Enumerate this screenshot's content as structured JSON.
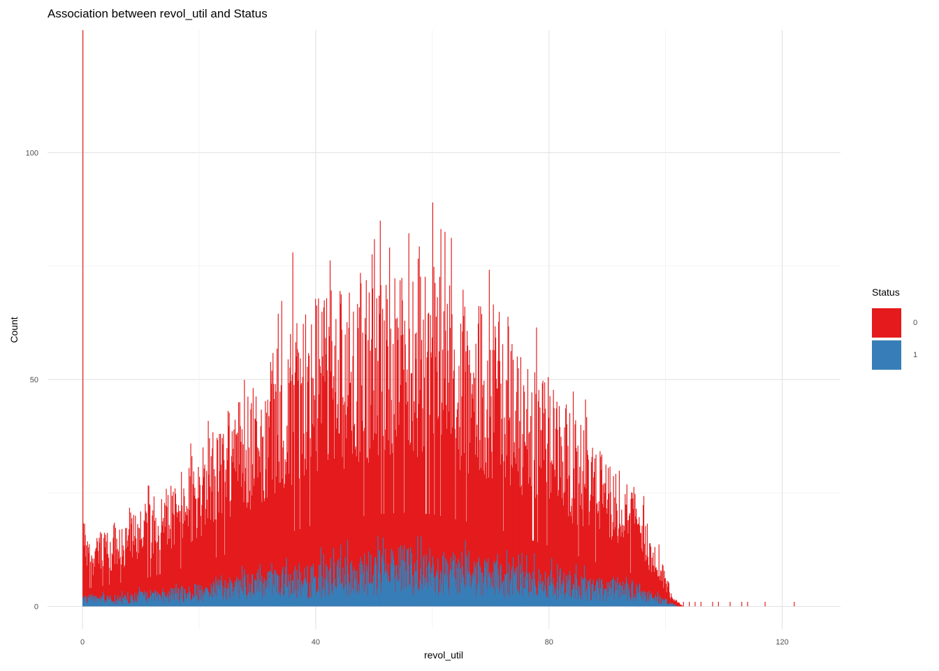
{
  "chart_data": {
    "type": "bar",
    "subtype": "stacked-histogram",
    "title": "Association between revol_util and Status",
    "xlabel": "revol_util",
    "ylabel": "Count",
    "xlim": [
      -6,
      130
    ],
    "ylim": [
      -5,
      127
    ],
    "x_ticks": [
      0,
      40,
      80,
      120
    ],
    "y_ticks": [
      0,
      50,
      100
    ],
    "grid": true,
    "legend": {
      "title": "Status",
      "position": "right",
      "entries": [
        {
          "label": "0",
          "color": "#E41A1C"
        },
        {
          "label": "1",
          "color": "#377EB8"
        }
      ]
    },
    "bin_width": 0.1,
    "profile": {
      "note_on": false,
      "total_x": [
        0,
        0.5,
        5,
        10,
        20,
        30,
        40,
        50,
        55,
        60,
        70,
        80,
        90,
        95,
        100,
        101,
        102,
        103
      ],
      "total_y": [
        20,
        11,
        14,
        17,
        27,
        40,
        52,
        58,
        59,
        58,
        50,
        38,
        25,
        20,
        6,
        2,
        1,
        0
      ],
      "status1_x": [
        0,
        5,
        20,
        40,
        55,
        60,
        80,
        95,
        100,
        102
      ],
      "status1_y": [
        2,
        1.5,
        3,
        6,
        8,
        7.5,
        5,
        3,
        1,
        0
      ]
    },
    "spikes": [
      {
        "x": 0,
        "value": 127
      },
      {
        "x": 60,
        "value": 89
      },
      {
        "x": 51,
        "value": 85
      },
      {
        "x": 36,
        "value": 78
      }
    ],
    "sparse_tail": [
      {
        "x": 103,
        "value": 1
      },
      {
        "x": 104,
        "value": 1
      },
      {
        "x": 105,
        "value": 1
      },
      {
        "x": 106,
        "value": 1
      },
      {
        "x": 108,
        "value": 1
      },
      {
        "x": 109,
        "value": 1
      },
      {
        "x": 111,
        "value": 1
      },
      {
        "x": 113,
        "value": 1
      },
      {
        "x": 114,
        "value": 1
      },
      {
        "x": 117,
        "value": 1
      },
      {
        "x": 122,
        "value": 1
      }
    ]
  }
}
